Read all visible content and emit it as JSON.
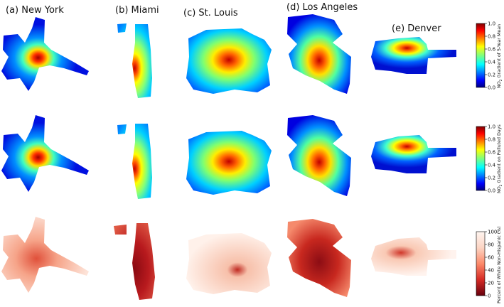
{
  "panels": [
    {
      "label": "(a) New York"
    },
    {
      "label": "(b) Miami"
    },
    {
      "label": "(c) St. Louis"
    },
    {
      "label": "(d) Los Angeles"
    },
    {
      "label": "(e) Denver"
    }
  ],
  "colorbars": [
    {
      "label_lines": [
        "NO",
        "2",
        " Gradient of 5-Year Mean"
      ],
      "ticks": [
        "1.0",
        "0.8",
        "0.6",
        "0.4",
        "0.2",
        "0.0"
      ],
      "colormap": "jet"
    },
    {
      "label_lines": [
        "NO",
        "2",
        " Gradient on Polluted Days"
      ],
      "ticks": [
        "1.0",
        "0.8",
        "0.6",
        "0.4",
        "0.2",
        "0.0"
      ],
      "colormap": "jet"
    },
    {
      "label_lines": [
        "Percent of White Non-Hispanic (%)"
      ],
      "ticks": [
        "100",
        "80",
        "60",
        "40",
        "20",
        "0"
      ],
      "colormap": "reds_reversed"
    }
  ],
  "colors": {
    "jet": [
      "#00007f",
      "#0000ff",
      "#007fff",
      "#00ffff",
      "#7fff7f",
      "#ffff00",
      "#ff7f00",
      "#ff0000",
      "#7f0000"
    ],
    "reds": [
      "#67000d",
      "#a50f15",
      "#d62a24",
      "#f4513a",
      "#fc8a6a",
      "#fcbba1",
      "#fee5d9",
      "#fff5f0"
    ]
  }
}
